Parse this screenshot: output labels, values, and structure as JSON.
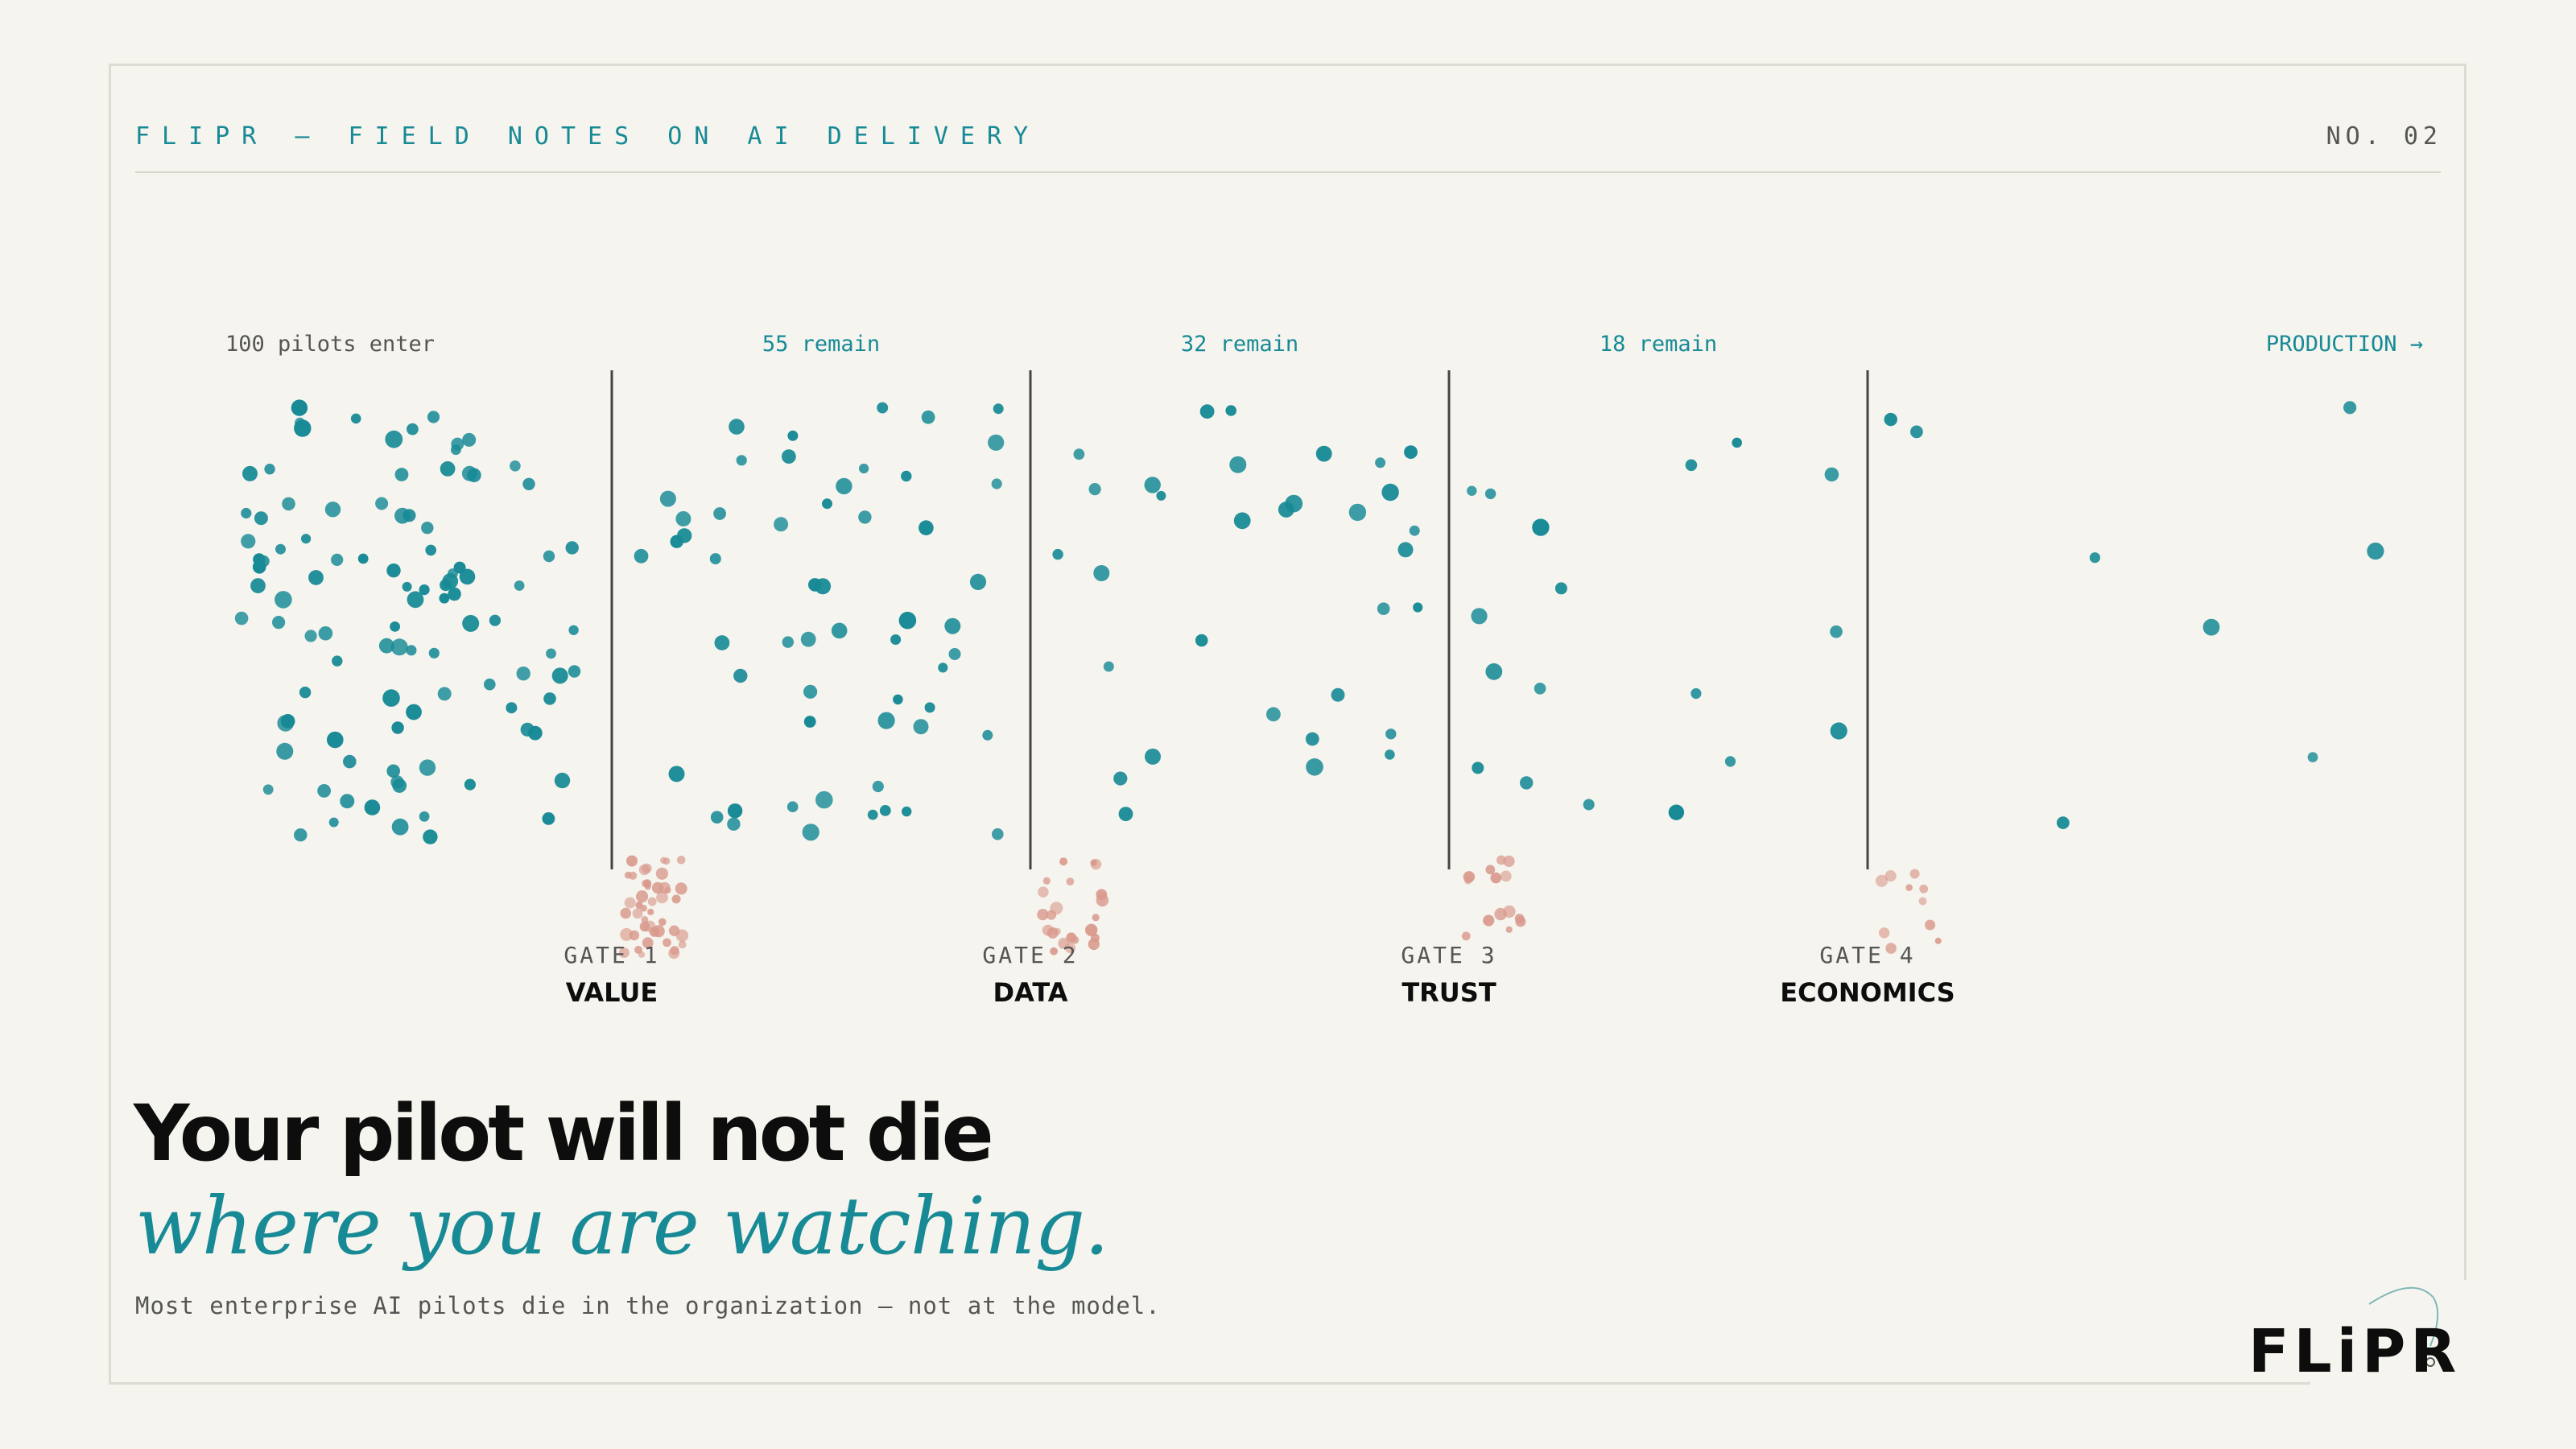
{
  "header": {
    "series_label": "FLIPR — FIELD NOTES ON AI DELIVERY",
    "issue": "NO. 02"
  },
  "funnel": {
    "stages": [
      {
        "label": "100 pilots enter",
        "count": 100,
        "rejected": 45
      },
      {
        "label": "55 remain",
        "count": 55,
        "rejected": 23
      },
      {
        "label": "32 remain",
        "count": 32,
        "rejected": 14
      },
      {
        "label": "18 remain",
        "count": 18,
        "rejected": 10
      },
      {
        "label": "",
        "count": 8,
        "rejected": 0
      }
    ],
    "destination": "PRODUCTION →",
    "gates": [
      {
        "number": "GATE 1",
        "name": "VALUE"
      },
      {
        "number": "GATE 2",
        "name": "DATA"
      },
      {
        "number": "GATE 3",
        "name": "TRUST"
      },
      {
        "number": "GATE 4",
        "name": "ECONOMICS"
      }
    ],
    "colors": {
      "survivor": "#178a96",
      "rejected": "#d9998c",
      "gate": "#444444",
      "first_label": "#555555"
    }
  },
  "tagline": {
    "line1": "Your pilot will not die",
    "line2": "where you are watching."
  },
  "subline": "Most enterprise AI pilots die in the organization — not at the model.",
  "logo": {
    "text": "FLiPR",
    "icon": "orbit-arc-icon"
  }
}
